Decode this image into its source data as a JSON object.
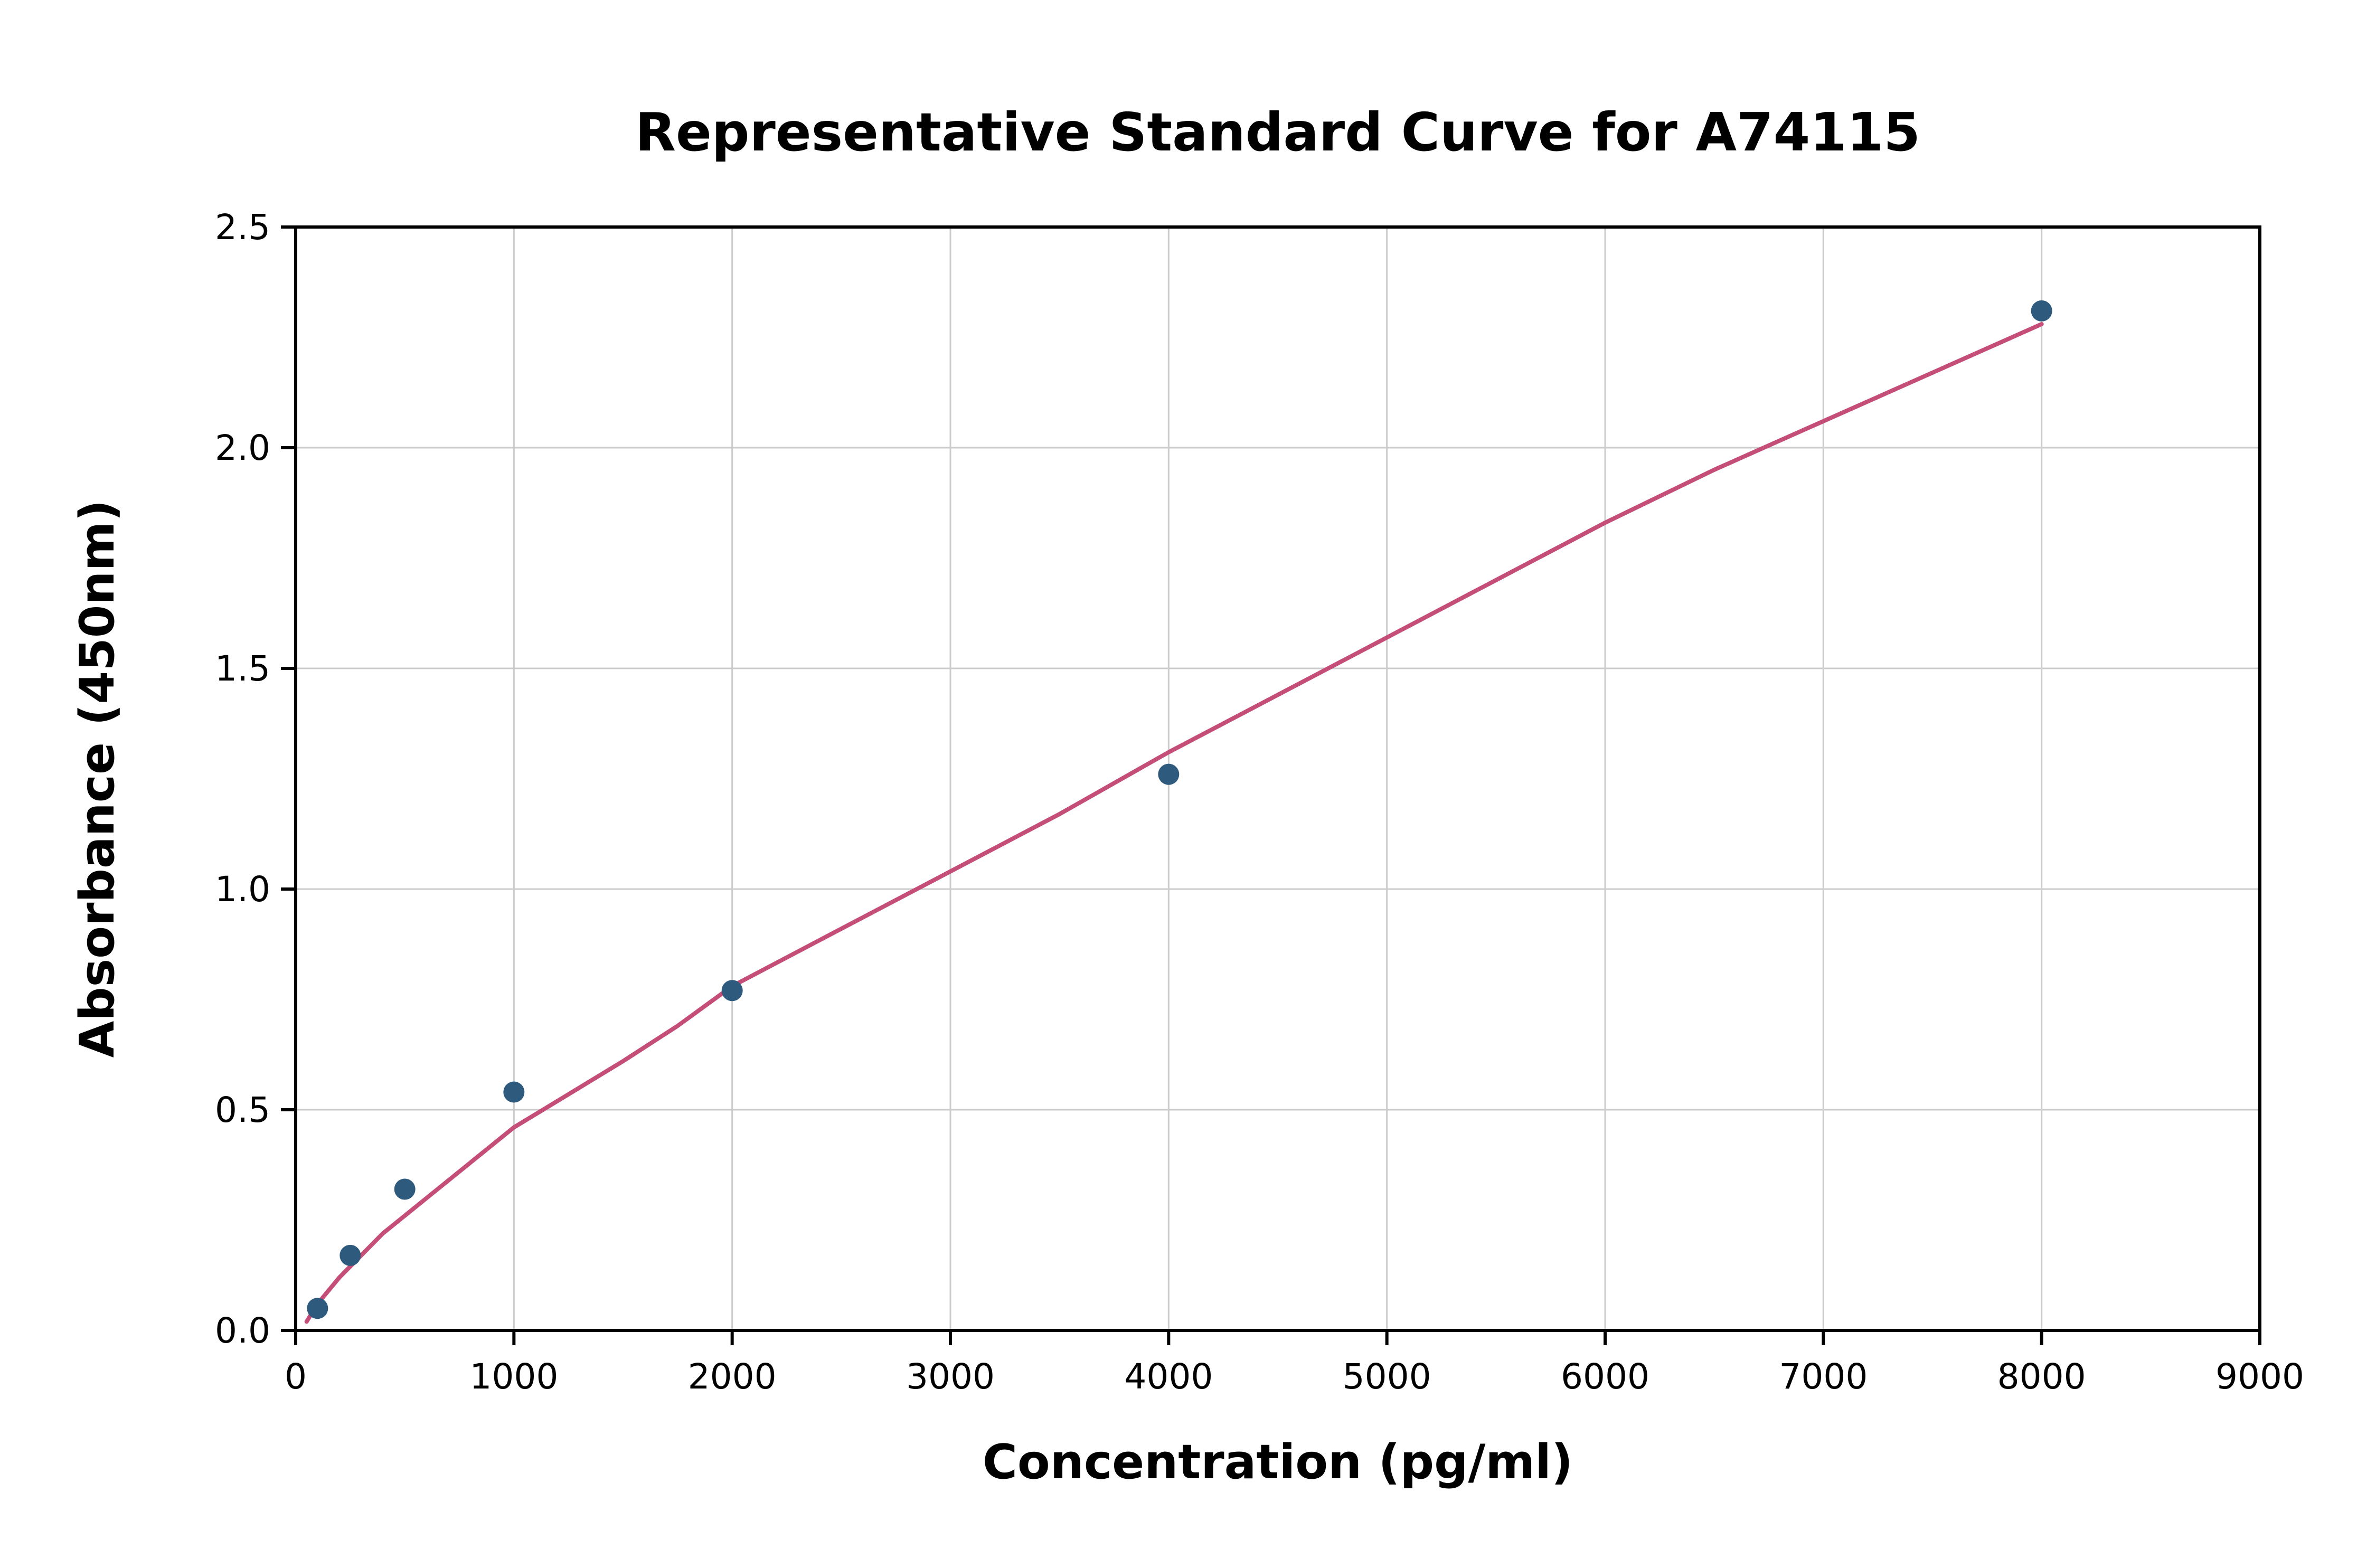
{
  "title": "Representative Standard Curve for A74115",
  "chart_data": {
    "type": "scatter",
    "title": "Representative Standard Curve for A74115",
    "xlabel": "Concentration (pg/ml)",
    "ylabel": "Absorbance (450nm)",
    "xlim": [
      0,
      9000
    ],
    "ylim": [
      0,
      2.5
    ],
    "x_ticks": [
      0,
      1000,
      2000,
      3000,
      4000,
      5000,
      6000,
      7000,
      8000,
      9000
    ],
    "y_ticks": [
      0.0,
      0.5,
      1.0,
      1.5,
      2.0,
      2.5
    ],
    "grid": true,
    "grid_color": "#cccccc",
    "point_color": "#2e5a7d",
    "curve_color": "#c44e78",
    "points": [
      {
        "x": 100,
        "y": 0.05
      },
      {
        "x": 250,
        "y": 0.17
      },
      {
        "x": 500,
        "y": 0.32
      },
      {
        "x": 1000,
        "y": 0.54
      },
      {
        "x": 2000,
        "y": 0.77
      },
      {
        "x": 4000,
        "y": 1.26
      },
      {
        "x": 8000,
        "y": 2.31
      }
    ],
    "fit_curve": [
      [
        50,
        0.02
      ],
      [
        100,
        0.06
      ],
      [
        150,
        0.09
      ],
      [
        200,
        0.12
      ],
      [
        300,
        0.17
      ],
      [
        400,
        0.22
      ],
      [
        500,
        0.26
      ],
      [
        600,
        0.3
      ],
      [
        800,
        0.38
      ],
      [
        1000,
        0.46
      ],
      [
        1200,
        0.52
      ],
      [
        1500,
        0.61
      ],
      [
        1750,
        0.69
      ],
      [
        2000,
        0.78
      ],
      [
        2500,
        0.91
      ],
      [
        3000,
        1.04
      ],
      [
        3500,
        1.17
      ],
      [
        4000,
        1.31
      ],
      [
        4500,
        1.44
      ],
      [
        5000,
        1.57
      ],
      [
        5500,
        1.7
      ],
      [
        6000,
        1.83
      ],
      [
        6500,
        1.95
      ],
      [
        7000,
        2.06
      ],
      [
        7500,
        2.17
      ],
      [
        8000,
        2.28
      ]
    ]
  }
}
